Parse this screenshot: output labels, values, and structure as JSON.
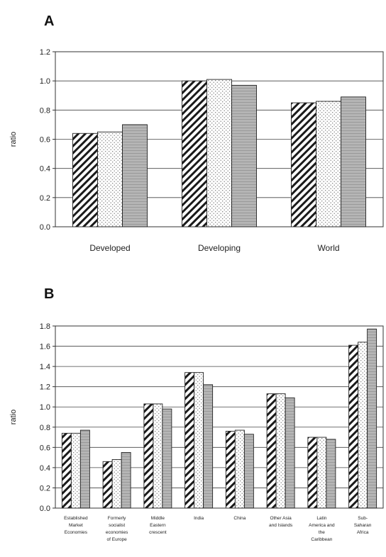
{
  "chart_data": [
    {
      "panel": "A",
      "type": "bar",
      "ylabel": "ratio",
      "ylim": [
        0,
        1.2
      ],
      "yticks": [
        "0.0",
        "0.2",
        "0.4",
        "0.6",
        "0.8",
        "1.0",
        "1.2"
      ],
      "categories": [
        "Developed",
        "Developing",
        "World"
      ],
      "series": [
        {
          "pattern": "hatch",
          "values": [
            0.64,
            1.0,
            0.85
          ]
        },
        {
          "pattern": "dots",
          "values": [
            0.65,
            1.01,
            0.86
          ]
        },
        {
          "pattern": "shade",
          "values": [
            0.7,
            0.97,
            0.89
          ]
        }
      ],
      "grid": true,
      "colors": {
        "hatch": "#ffffff",
        "dots": "#ffffff",
        "shade": "#b5b5b5"
      }
    },
    {
      "panel": "B",
      "type": "bar",
      "ylabel": "ratio",
      "ylim": [
        0,
        1.8
      ],
      "yticks": [
        "0.0",
        "0.2",
        "0.4",
        "0.6",
        "0.8",
        "1.0",
        "1.2",
        "1.4",
        "1.6",
        "1.8"
      ],
      "categories": [
        [
          "Established",
          "Market",
          "Economies"
        ],
        [
          "Formerly",
          "socialist",
          "economies",
          "of Europe"
        ],
        [
          "Middle",
          "Eastern",
          "crescent"
        ],
        [
          "India"
        ],
        [
          "China"
        ],
        [
          "Other Asia",
          "and Islands"
        ],
        [
          "Latin",
          "America and",
          "the",
          "Caribbean"
        ],
        [
          "Sub-",
          "Saharan",
          "Africa"
        ]
      ],
      "series": [
        {
          "pattern": "hatch",
          "values": [
            0.74,
            0.46,
            1.03,
            1.34,
            0.76,
            1.13,
            0.7,
            1.61
          ]
        },
        {
          "pattern": "dots",
          "values": [
            0.74,
            0.48,
            1.03,
            1.34,
            0.77,
            1.13,
            0.7,
            1.64
          ]
        },
        {
          "pattern": "shade",
          "values": [
            0.77,
            0.55,
            0.98,
            1.22,
            0.73,
            1.09,
            0.68,
            1.77
          ]
        }
      ],
      "grid": true,
      "colors": {
        "hatch": "#ffffff",
        "dots": "#ffffff",
        "shade": "#b5b5b5"
      }
    }
  ]
}
